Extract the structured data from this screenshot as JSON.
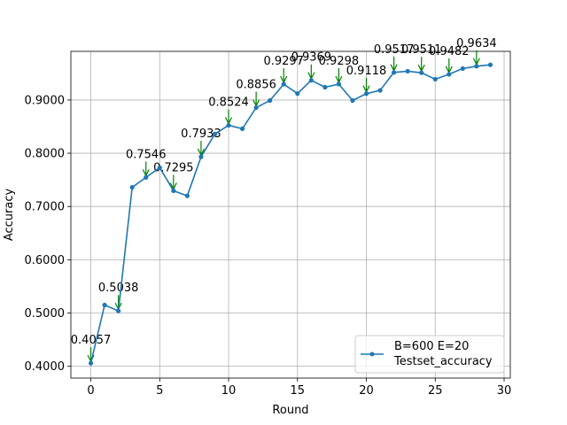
{
  "chart_data": {
    "type": "line",
    "xlabel": "Round",
    "ylabel": "Accuracy",
    "xlim": [
      -1.45,
      30.45
    ],
    "ylim": [
      0.3778,
      0.9913
    ],
    "xticks": [
      0,
      5,
      10,
      15,
      20,
      25,
      30
    ],
    "yticks": [
      0.4,
      0.5,
      0.6,
      0.7,
      0.8,
      0.9
    ],
    "ytick_labels": [
      "0.4000",
      "0.5000",
      "0.6000",
      "0.7000",
      "0.8000",
      "0.9000"
    ],
    "xtick_labels": [
      "0",
      "5",
      "10",
      "15",
      "20",
      "25",
      "30"
    ],
    "grid": true,
    "legend": {
      "placement": "lower-right",
      "title": "B=600 E=20",
      "entries": [
        "Testset_accuracy"
      ]
    },
    "series": [
      {
        "name": "Testset_accuracy",
        "color": "#1f77b4",
        "x": [
          0,
          1,
          2,
          3,
          4,
          5,
          6,
          7,
          8,
          9,
          10,
          11,
          12,
          13,
          14,
          15,
          16,
          17,
          18,
          19,
          20,
          21,
          22,
          23,
          24,
          25,
          26,
          27,
          28,
          29
        ],
        "y": [
          0.4057,
          0.515,
          0.5038,
          0.736,
          0.7546,
          0.773,
          0.7295,
          0.72,
          0.7933,
          0.836,
          0.8524,
          0.846,
          0.8856,
          0.899,
          0.9297,
          0.912,
          0.9369,
          0.924,
          0.9298,
          0.899,
          0.9118,
          0.918,
          0.9517,
          0.954,
          0.9511,
          0.939,
          0.9482,
          0.959,
          0.9634,
          0.966
        ]
      }
    ],
    "annotations": [
      {
        "x": 0,
        "y": 0.4057,
        "label": "0.4057",
        "color": "#008000"
      },
      {
        "x": 2,
        "y": 0.5038,
        "label": "0.5038",
        "color": "#008000"
      },
      {
        "x": 4,
        "y": 0.7546,
        "label": "0.7546",
        "color": "#008000"
      },
      {
        "x": 6,
        "y": 0.7295,
        "label": "0.7295",
        "color": "#008000"
      },
      {
        "x": 8,
        "y": 0.7933,
        "label": "0.7933",
        "color": "#008000"
      },
      {
        "x": 10,
        "y": 0.8524,
        "label": "0.8524",
        "color": "#008000"
      },
      {
        "x": 12,
        "y": 0.8856,
        "label": "0.8856",
        "color": "#008000"
      },
      {
        "x": 14,
        "y": 0.9297,
        "label": "0.9297",
        "color": "#008000"
      },
      {
        "x": 16,
        "y": 0.9369,
        "label": "0.9369",
        "color": "#008000"
      },
      {
        "x": 18,
        "y": 0.9298,
        "label": "0.9298",
        "color": "#008000"
      },
      {
        "x": 20,
        "y": 0.9118,
        "label": "0.9118",
        "color": "#008000"
      },
      {
        "x": 22,
        "y": 0.9517,
        "label": "0.9517",
        "color": "#008000"
      },
      {
        "x": 24,
        "y": 0.9511,
        "label": "0.9511",
        "color": "#008000"
      },
      {
        "x": 26,
        "y": 0.9482,
        "label": "0.9482",
        "color": "#008000"
      },
      {
        "x": 28,
        "y": 0.9634,
        "label": "0.9634",
        "color": "#008000"
      }
    ]
  }
}
